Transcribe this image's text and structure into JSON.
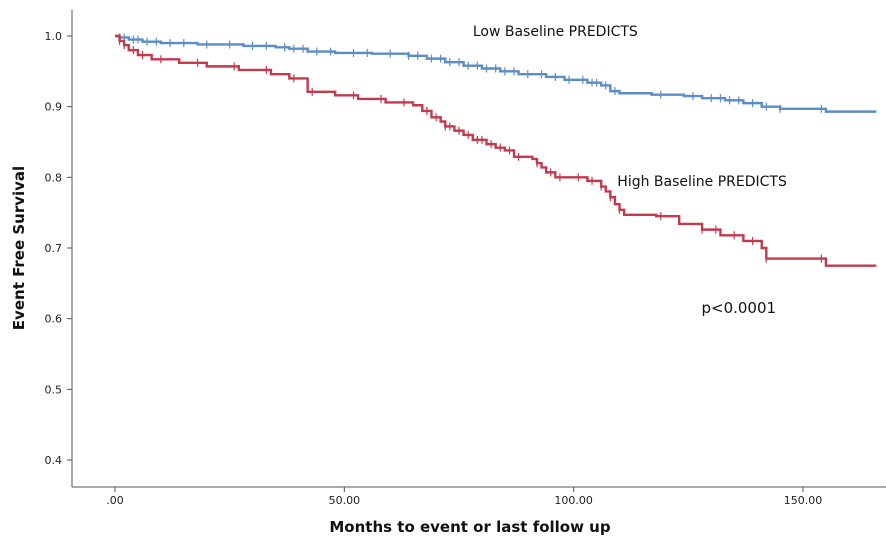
{
  "chart_data": {
    "type": "line",
    "subtype": "kaplan-meier step",
    "xlabel": "Months to event or last follow up",
    "ylabel": "Event Free Survival",
    "xlim": [
      -5,
      166
    ],
    "ylim": [
      0.36,
      1.04
    ],
    "x_ticks": [
      {
        "value": 0,
        "label": ".00"
      },
      {
        "value": 50,
        "label": "50.00"
      },
      {
        "value": 100,
        "label": "100.00"
      },
      {
        "value": 150,
        "label": "150.00"
      }
    ],
    "y_ticks": [
      {
        "value": 1.0,
        "label": "1.0"
      },
      {
        "value": 0.9,
        "label": "0.9"
      },
      {
        "value": 0.8,
        "label": "0.8"
      },
      {
        "value": 0.7,
        "label": "0.7"
      },
      {
        "value": 0.6,
        "label": "0.6"
      },
      {
        "value": 0.5,
        "label": "0.5"
      },
      {
        "value": 0.4,
        "label": "0.4"
      }
    ],
    "grid": false,
    "series": [
      {
        "name": "Low Baseline PREDICTS",
        "color": "#5b8cc6",
        "steps": [
          [
            0,
            1.0
          ],
          [
            1,
            0.998
          ],
          [
            3,
            0.995
          ],
          [
            6,
            0.992
          ],
          [
            10,
            0.99
          ],
          [
            18,
            0.988
          ],
          [
            28,
            0.986
          ],
          [
            35,
            0.984
          ],
          [
            38,
            0.982
          ],
          [
            42,
            0.978
          ],
          [
            48,
            0.976
          ],
          [
            56,
            0.975
          ],
          [
            64,
            0.972
          ],
          [
            68,
            0.968
          ],
          [
            72,
            0.963
          ],
          [
            76,
            0.958
          ],
          [
            80,
            0.954
          ],
          [
            84,
            0.95
          ],
          [
            88,
            0.946
          ],
          [
            94,
            0.942
          ],
          [
            98,
            0.938
          ],
          [
            103,
            0.934
          ],
          [
            106,
            0.93
          ],
          [
            108,
            0.922
          ],
          [
            110,
            0.919
          ],
          [
            117,
            0.917
          ],
          [
            124,
            0.915
          ],
          [
            128,
            0.912
          ],
          [
            133,
            0.909
          ],
          [
            137,
            0.905
          ],
          [
            141,
            0.9
          ],
          [
            145,
            0.897
          ],
          [
            155,
            0.893
          ],
          [
            166,
            0.893
          ]
        ],
        "censor_x": [
          1,
          2,
          4,
          5,
          7,
          9,
          12,
          15,
          20,
          25,
          30,
          33,
          37,
          39,
          41,
          44,
          47,
          52,
          55,
          60,
          64,
          66,
          69,
          71,
          73,
          75,
          77,
          79,
          81,
          83,
          85,
          87,
          90,
          93,
          96,
          99,
          102,
          104,
          105,
          107,
          109,
          119,
          126,
          130,
          132,
          134,
          136,
          139,
          142,
          145,
          154
        ]
      },
      {
        "name": "High Baseline PREDICTS",
        "color": "#c23a4e",
        "steps": [
          [
            0,
            1.0
          ],
          [
            1,
            0.993
          ],
          [
            2,
            0.987
          ],
          [
            3,
            0.98
          ],
          [
            5,
            0.973
          ],
          [
            8,
            0.967
          ],
          [
            14,
            0.962
          ],
          [
            20,
            0.957
          ],
          [
            27,
            0.952
          ],
          [
            34,
            0.946
          ],
          [
            38,
            0.94
          ],
          [
            42,
            0.921
          ],
          [
            48,
            0.916
          ],
          [
            53,
            0.911
          ],
          [
            59,
            0.906
          ],
          [
            65,
            0.902
          ],
          [
            67,
            0.894
          ],
          [
            69,
            0.885
          ],
          [
            71,
            0.879
          ],
          [
            72,
            0.872
          ],
          [
            74,
            0.866
          ],
          [
            76,
            0.86
          ],
          [
            78,
            0.853
          ],
          [
            81,
            0.847
          ],
          [
            83,
            0.842
          ],
          [
            85,
            0.838
          ],
          [
            87,
            0.829
          ],
          [
            91,
            0.826
          ],
          [
            92,
            0.82
          ],
          [
            93,
            0.814
          ],
          [
            94,
            0.807
          ],
          [
            96,
            0.8
          ],
          [
            103,
            0.795
          ],
          [
            106,
            0.787
          ],
          [
            107,
            0.78
          ],
          [
            108,
            0.772
          ],
          [
            109,
            0.762
          ],
          [
            110,
            0.754
          ],
          [
            111,
            0.747
          ],
          [
            118,
            0.745
          ],
          [
            123,
            0.734
          ],
          [
            128,
            0.726
          ],
          [
            132,
            0.718
          ],
          [
            137,
            0.71
          ],
          [
            141,
            0.7
          ],
          [
            142,
            0.685
          ],
          [
            155,
            0.675
          ],
          [
            166,
            0.675
          ]
        ],
        "censor_x": [
          1,
          2,
          4,
          6,
          10,
          18,
          26,
          33,
          39,
          43,
          52,
          58,
          63,
          68,
          70,
          72,
          73,
          75,
          77,
          79,
          80,
          82,
          84,
          86,
          88,
          92,
          95,
          97,
          101,
          104,
          106,
          108,
          110,
          119,
          128,
          131,
          135,
          139,
          142,
          154
        ]
      }
    ],
    "annotations": [
      {
        "text": "Low Baseline PREDICTS",
        "x": 96,
        "y": 1.0
      },
      {
        "text": "High Baseline PREDICTS",
        "x": 128,
        "y": 0.788
      },
      {
        "text": "p<0.0001",
        "x": 136,
        "y": 0.608
      }
    ]
  }
}
